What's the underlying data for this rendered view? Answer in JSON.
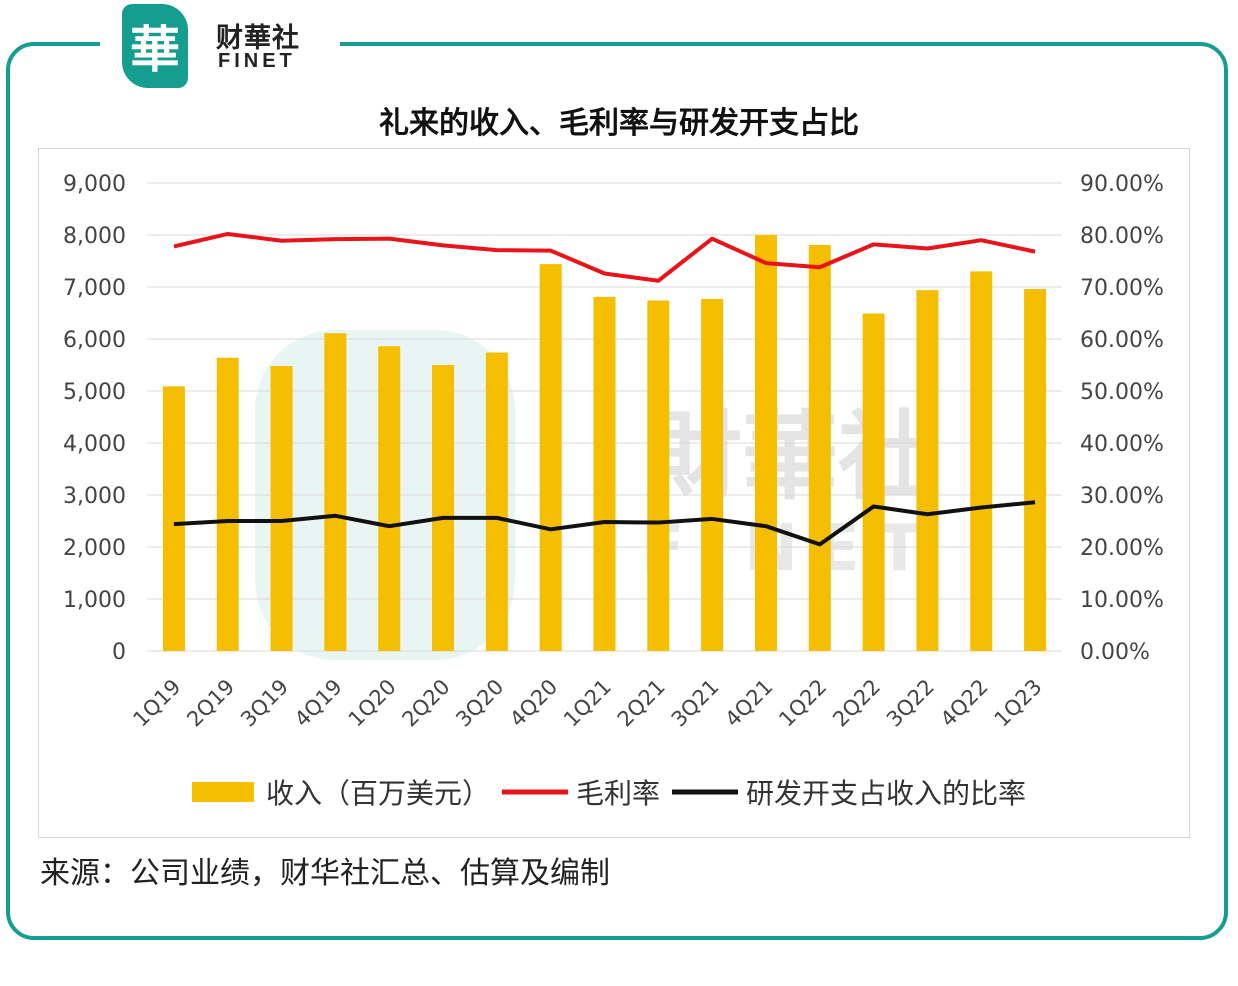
{
  "logo": {
    "badge_char": "華",
    "cn": "财華社",
    "en": "FINET"
  },
  "watermark": {
    "cn": "財華社",
    "en": "FINET"
  },
  "source": "来源：公司业绩，财华社汇总、估算及编制",
  "colors": {
    "bar": "#f5be00",
    "gross_margin": "#e8141a",
    "rd_ratio": "#111111",
    "frame": "#159e8f"
  },
  "chart_data": {
    "type": "bar",
    "title": "礼来的收入、毛利率与研发开支占比",
    "categories": [
      "1Q19",
      "2Q19",
      "3Q19",
      "4Q19",
      "1Q20",
      "2Q20",
      "3Q20",
      "4Q20",
      "1Q21",
      "2Q21",
      "3Q21",
      "4Q21",
      "1Q22",
      "2Q22",
      "3Q22",
      "4Q22",
      "1Q23"
    ],
    "series": [
      {
        "name": "收入（百万美元）",
        "type": "bar",
        "axis": "left",
        "values": [
          5090,
          5640,
          5480,
          6110,
          5860,
          5500,
          5740,
          7440,
          6810,
          6740,
          6770,
          8000,
          7810,
          6490,
          6940,
          7300,
          6960
        ]
      },
      {
        "name": "毛利率",
        "type": "line",
        "axis": "right",
        "values": [
          77.8,
          80.2,
          78.9,
          79.2,
          79.3,
          78.0,
          77.1,
          77.0,
          72.6,
          71.2,
          79.3,
          74.6,
          73.8,
          78.2,
          77.4,
          79.0,
          76.8
        ]
      },
      {
        "name": "研发开支占收入的比率",
        "type": "line",
        "axis": "right",
        "values": [
          24.4,
          25.0,
          25.0,
          26.0,
          24.0,
          25.6,
          25.6,
          23.4,
          24.8,
          24.7,
          25.4,
          24.0,
          20.5,
          27.8,
          26.3,
          27.6,
          28.6
        ]
      }
    ],
    "y_left": {
      "min": 0,
      "max": 9000,
      "ticks": [
        "0",
        "1,000",
        "2,000",
        "3,000",
        "4,000",
        "5,000",
        "6,000",
        "7,000",
        "8,000",
        "9,000"
      ]
    },
    "y_right": {
      "min": 0,
      "max": 90,
      "ticks": [
        "0.00%",
        "10.00%",
        "20.00%",
        "30.00%",
        "40.00%",
        "50.00%",
        "60.00%",
        "70.00%",
        "80.00%",
        "90.00%"
      ]
    },
    "legend": [
      "收入（百万美元）",
      "毛利率",
      "研发开支占收入的比率"
    ],
    "legend_position": "bottom",
    "grid": true
  }
}
